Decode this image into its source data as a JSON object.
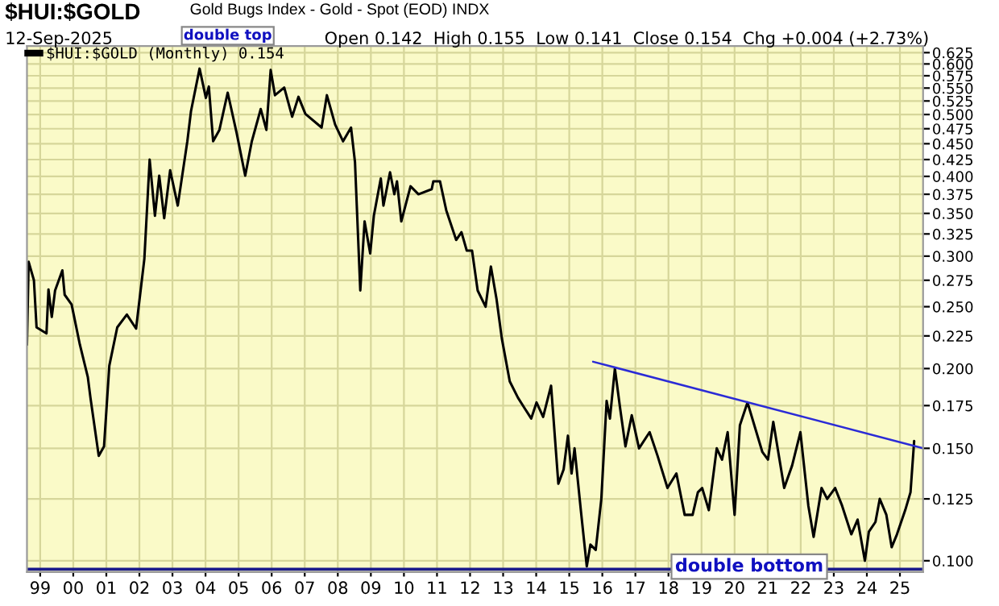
{
  "chart_data": {
    "type": "line",
    "title": "$HUI:$GOLD",
    "subtitle": "Gold Bugs Index - Gold - Spot (EOD) INDX",
    "annotations": [
      "12-Sep-2025",
      "Open 0.142  High 0.155  Low 0.141  Close 0.154  Chg +0.004 (+2.73%)",
      "double top",
      "double bottom"
    ],
    "series": [
      {
        "name": "$HUI:$GOLD (Monthly) 0.154",
        "color": "#000000",
        "x": [
          1998.6,
          1998.65,
          1998.81,
          1998.89,
          1999.19,
          1999.25,
          1999.35,
          1999.45,
          1999.67,
          1999.74,
          1999.95,
          2000.2,
          2000.44,
          2000.52,
          2000.77,
          2000.93,
          2001.09,
          2001.33,
          2001.62,
          2001.9,
          2002.15,
          2002.31,
          2002.47,
          2002.6,
          2002.75,
          2002.93,
          2003.16,
          2003.45,
          2003.56,
          2003.82,
          2004.01,
          2004.1,
          2004.23,
          2004.42,
          2004.67,
          2004.94,
          2005.2,
          2005.4,
          2005.67,
          2005.84,
          2005.97,
          2006.1,
          2006.38,
          2006.62,
          2006.81,
          2007.02,
          2007.51,
          2007.67,
          2007.92,
          2008.16,
          2008.4,
          2008.52,
          2008.68,
          2008.81,
          2008.98,
          2009.09,
          2009.3,
          2009.38,
          2009.58,
          2009.71,
          2009.79,
          2009.92,
          2010.2,
          2010.44,
          2010.84,
          2010.89,
          2011.09,
          2011.28,
          2011.58,
          2011.74,
          2011.9,
          2012.06,
          2012.23,
          2012.47,
          2012.63,
          2012.8,
          2012.96,
          2013.2,
          2013.45,
          2013.66,
          2013.85,
          2014.01,
          2014.21,
          2014.45,
          2014.67,
          2014.83,
          2014.96,
          2015.07,
          2015.16,
          2015.35,
          2015.53,
          2015.64,
          2015.8,
          2015.97,
          2016.13,
          2016.23,
          2016.38,
          2016.54,
          2016.7,
          2016.89,
          2017.11,
          2017.43,
          2017.67,
          2017.97,
          2018.24,
          2018.49,
          2018.73,
          2018.89,
          2019.02,
          2019.22,
          2019.46,
          2019.62,
          2019.79,
          2020.0,
          2020.16,
          2020.39,
          2020.84,
          2021.01,
          2021.17,
          2021.5,
          2021.74,
          2021.99,
          2022.23,
          2022.39,
          2022.63,
          2022.8,
          2023.04,
          2023.25,
          2023.53,
          2023.72,
          2023.94,
          2024.06,
          2024.26,
          2024.39,
          2024.59,
          2024.75,
          2024.91,
          2025.16,
          2025.32,
          2025.43
        ],
        "values": [
          0.218,
          0.294,
          0.275,
          0.232,
          0.227,
          0.266,
          0.241,
          0.265,
          0.285,
          0.261,
          0.252,
          0.218,
          0.194,
          0.18,
          0.146,
          0.151,
          0.202,
          0.232,
          0.243,
          0.231,
          0.297,
          0.425,
          0.347,
          0.401,
          0.344,
          0.409,
          0.36,
          0.454,
          0.506,
          0.59,
          0.531,
          0.553,
          0.454,
          0.473,
          0.541,
          0.468,
          0.401,
          0.454,
          0.51,
          0.473,
          0.587,
          0.536,
          0.551,
          0.496,
          0.533,
          0.501,
          0.477,
          0.536,
          0.482,
          0.454,
          0.477,
          0.421,
          0.265,
          0.34,
          0.303,
          0.347,
          0.397,
          0.36,
          0.406,
          0.375,
          0.393,
          0.34,
          0.386,
          0.375,
          0.382,
          0.393,
          0.393,
          0.354,
          0.318,
          0.327,
          0.306,
          0.306,
          0.265,
          0.25,
          0.289,
          0.257,
          0.223,
          0.191,
          0.18,
          0.173,
          0.167,
          0.177,
          0.168,
          0.188,
          0.132,
          0.139,
          0.157,
          0.137,
          0.15,
          0.12,
          0.098,
          0.106,
          0.104,
          0.125,
          0.178,
          0.167,
          0.2,
          0.173,
          0.151,
          0.169,
          0.15,
          0.159,
          0.146,
          0.13,
          0.137,
          0.118,
          0.118,
          0.128,
          0.13,
          0.12,
          0.15,
          0.144,
          0.159,
          0.118,
          0.163,
          0.177,
          0.148,
          0.144,
          0.165,
          0.13,
          0.141,
          0.159,
          0.122,
          0.109,
          0.13,
          0.125,
          0.13,
          0.122,
          0.11,
          0.116,
          0.1,
          0.111,
          0.115,
          0.125,
          0.118,
          0.105,
          0.11,
          0.12,
          0.128,
          0.154
        ]
      },
      {
        "type": "line",
        "color": "#2b2bd6",
        "x": [
          2015.72,
          2025.7
        ],
        "values": [
          0.205,
          0.15
        ]
      }
    ],
    "ref_lines": [
      {
        "axis": "y",
        "value": 0.097,
        "color": "#1a1a8c"
      }
    ],
    "log": "y",
    "xlim": [
      1998.6,
      2025.7
    ],
    "xticks": [
      {
        "value": 1999,
        "label": "99"
      },
      {
        "value": 2000,
        "label": "00"
      },
      {
        "value": 2001,
        "label": "01"
      },
      {
        "value": 2002,
        "label": "02"
      },
      {
        "value": 2003,
        "label": "03"
      },
      {
        "value": 2004,
        "label": "04"
      },
      {
        "value": 2005,
        "label": "05"
      },
      {
        "value": 2006,
        "label": "06"
      },
      {
        "value": 2007,
        "label": "07"
      },
      {
        "value": 2008,
        "label": "08"
      },
      {
        "value": 2009,
        "label": "09"
      },
      {
        "value": 2010,
        "label": "10"
      },
      {
        "value": 2011,
        "label": "11"
      },
      {
        "value": 2012,
        "label": "12"
      },
      {
        "value": 2013,
        "label": "13"
      },
      {
        "value": 2014,
        "label": "14"
      },
      {
        "value": 2015,
        "label": "15"
      },
      {
        "value": 2016,
        "label": "16"
      },
      {
        "value": 2017,
        "label": "17"
      },
      {
        "value": 2018,
        "label": "18"
      },
      {
        "value": 2019,
        "label": "19"
      },
      {
        "value": 2020,
        "label": "20"
      },
      {
        "value": 2021,
        "label": "21"
      },
      {
        "value": 2022,
        "label": "22"
      },
      {
        "value": 2023,
        "label": "23"
      },
      {
        "value": 2024,
        "label": "24"
      },
      {
        "value": 2025,
        "label": "25"
      }
    ],
    "ylim": [
      0.096,
      0.64
    ],
    "yticks": [
      {
        "value": 0.1,
        "label": "0.100"
      },
      {
        "value": 0.125,
        "label": "0.125"
      },
      {
        "value": 0.15,
        "label": "0.150"
      },
      {
        "value": 0.175,
        "label": "0.175"
      },
      {
        "value": 0.2,
        "label": "0.200"
      },
      {
        "value": 0.225,
        "label": "0.225"
      },
      {
        "value": 0.25,
        "label": "0.250"
      },
      {
        "value": 0.275,
        "label": "0.275"
      },
      {
        "value": 0.3,
        "label": "0.300"
      },
      {
        "value": 0.325,
        "label": "0.325"
      },
      {
        "value": 0.35,
        "label": "0.350"
      },
      {
        "value": 0.375,
        "label": "0.375"
      },
      {
        "value": 0.4,
        "label": "0.400"
      },
      {
        "value": 0.425,
        "label": "0.425"
      },
      {
        "value": 0.45,
        "label": "0.450"
      },
      {
        "value": 0.475,
        "label": "0.475"
      },
      {
        "value": 0.5,
        "label": "0.500"
      },
      {
        "value": 0.525,
        "label": "0.525"
      },
      {
        "value": 0.55,
        "label": "0.550"
      },
      {
        "value": 0.575,
        "label": "0.575"
      },
      {
        "value": 0.6,
        "label": "0.600"
      },
      {
        "value": 0.625,
        "label": "0.625"
      }
    ],
    "grid": true,
    "legend": "top left"
  }
}
